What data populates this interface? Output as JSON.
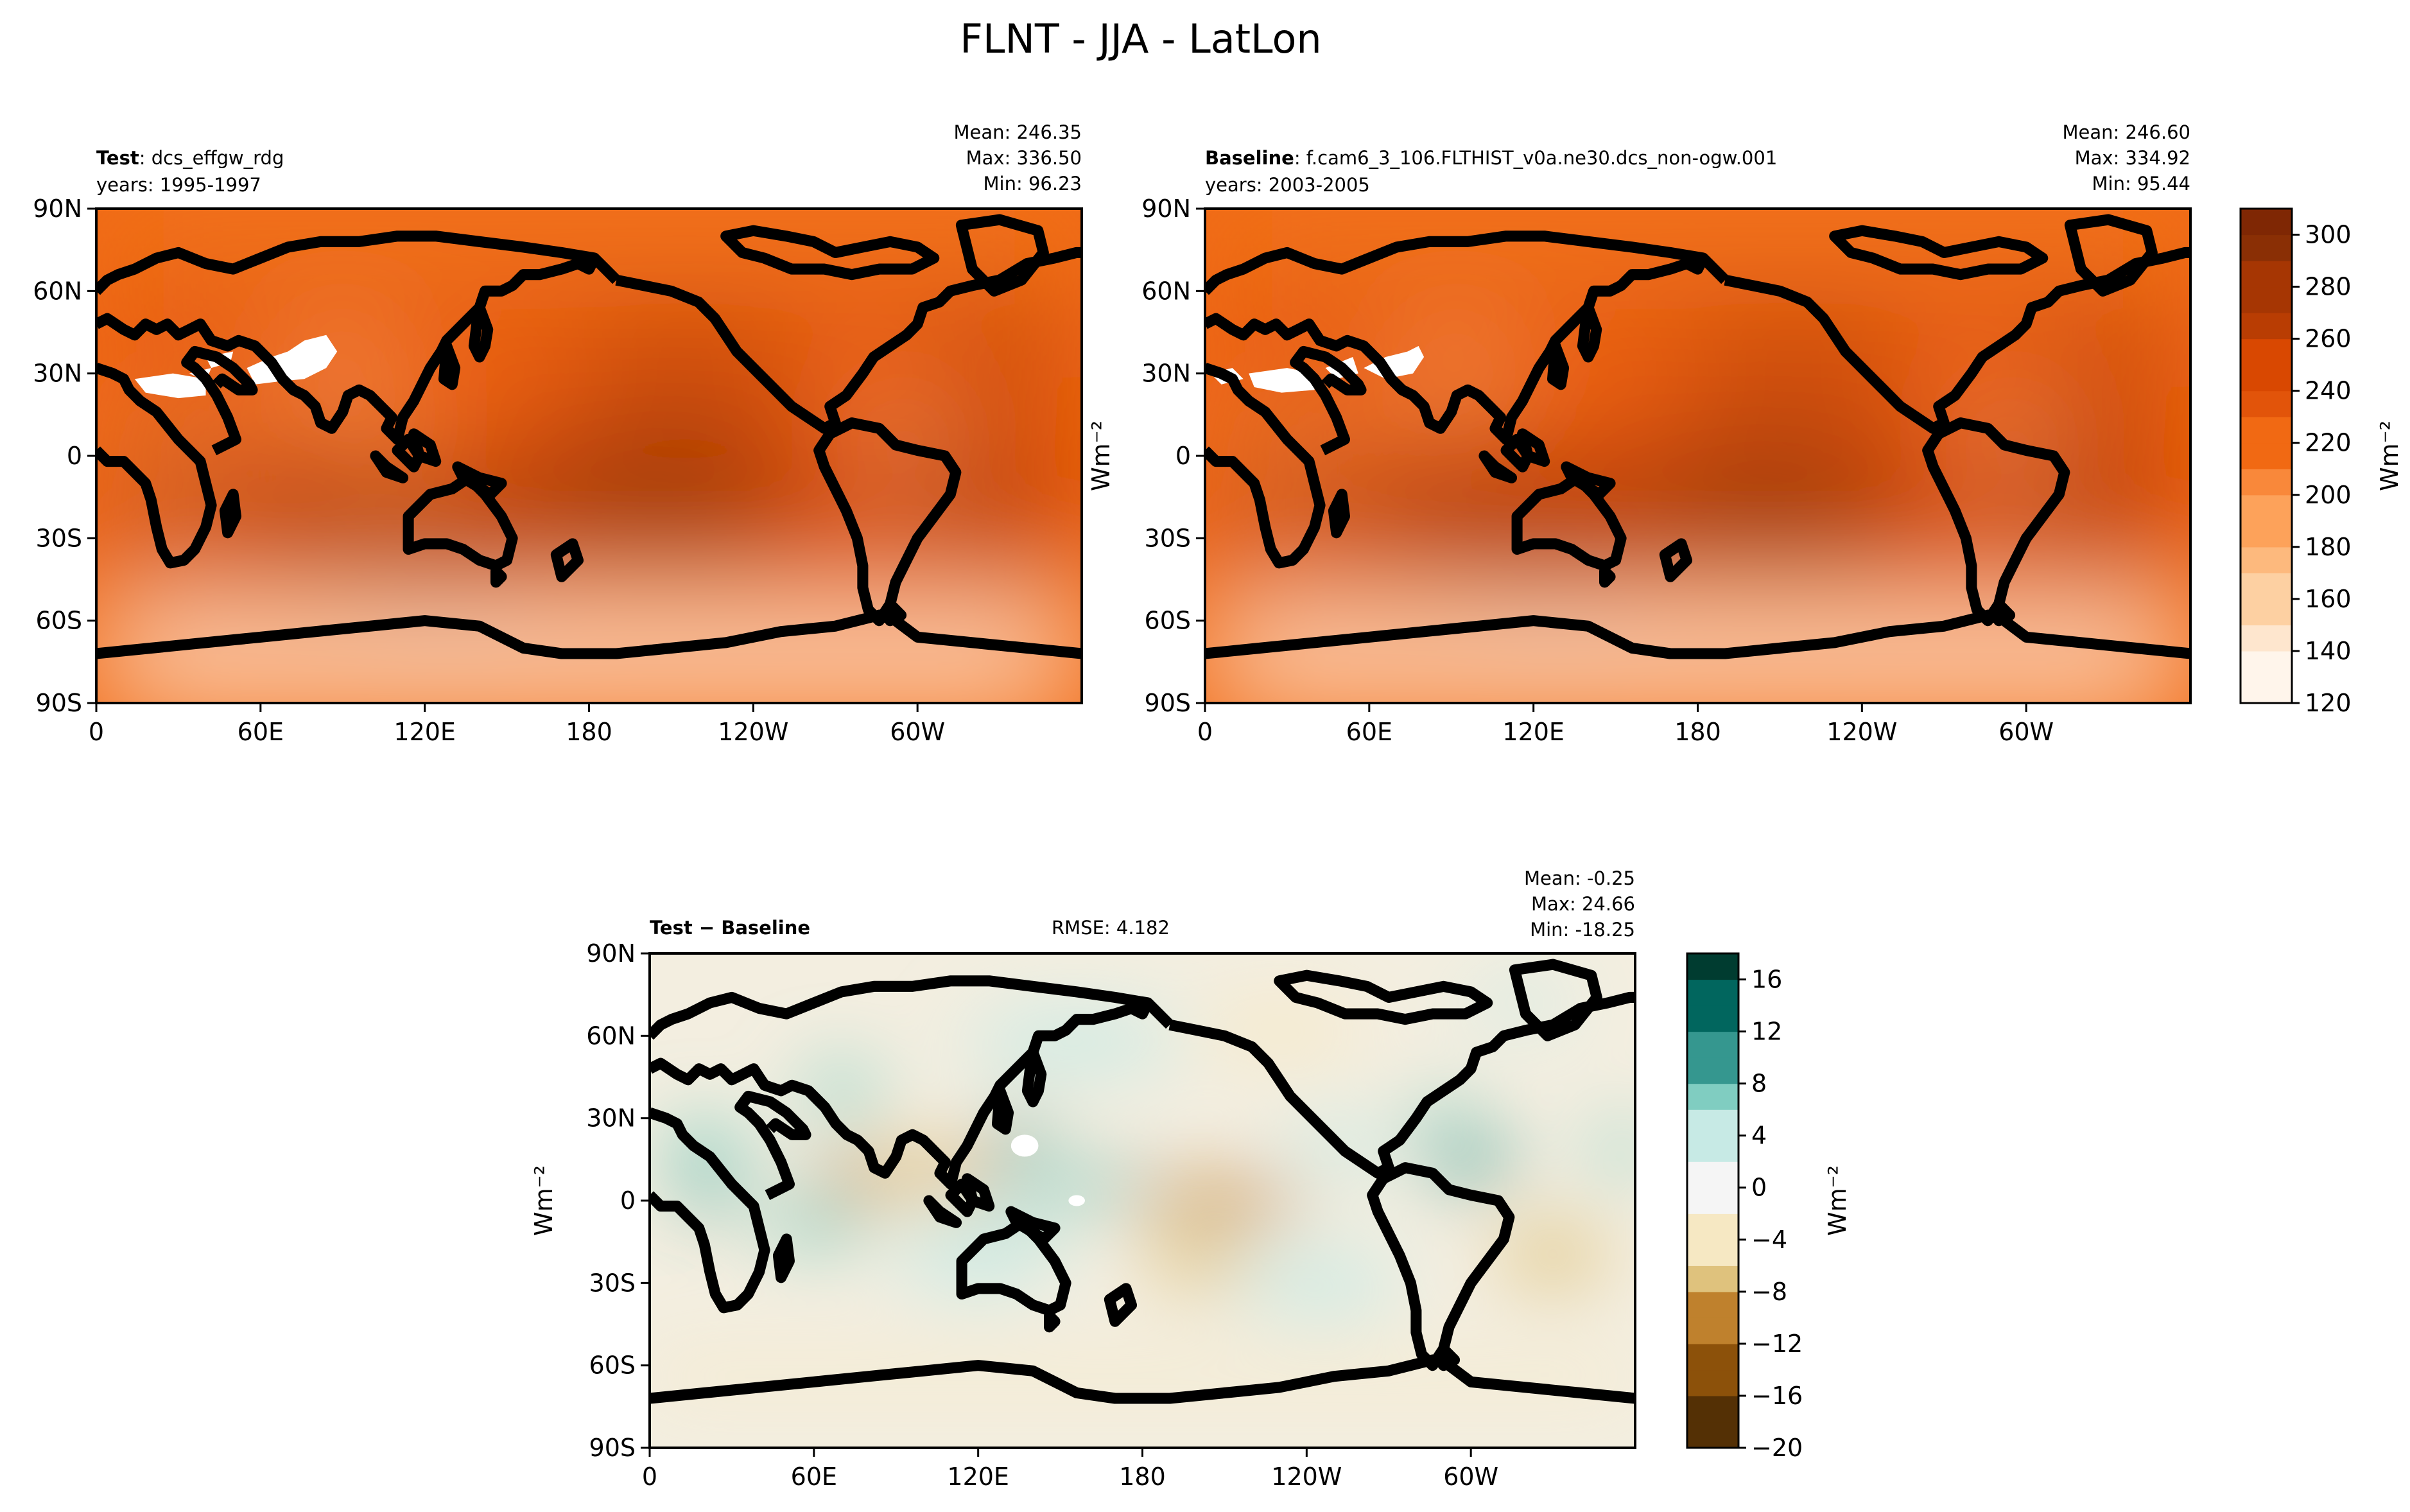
{
  "figure_title": "FLNT - JJA - LatLon",
  "colors": {
    "orange_scale": [
      "#fff5eb",
      "#fee6ce",
      "#fdd0a2",
      "#fdb97d",
      "#fda25a",
      "#f9883a",
      "#f16913",
      "#e2540a",
      "#d94801",
      "#b93d03",
      "#a63603",
      "#8a2f05",
      "#7f2704"
    ],
    "diff_scale": [
      "#543005",
      "#8c510a",
      "#bf812d",
      "#dfc27d",
      "#f6e8c3",
      "#f5f5f5",
      "#c7eae5",
      "#80cdc1",
      "#35978f",
      "#01665e",
      "#003c30"
    ]
  },
  "panels": {
    "test": {
      "label_bold": "Test",
      "label_rest": ": dcs_effgw_rdg",
      "years": "years: 1995-1997",
      "mean": "Mean: 246.35",
      "max": "Max: 336.50",
      "min": "Min: 96.23"
    },
    "baseline": {
      "label_bold": "Baseline",
      "label_rest": ": f.cam6_3_106.FLTHIST_v0a.ne30.dcs_non-ogw.001",
      "years": "years: 2003-2005",
      "mean": "Mean: 246.60",
      "max": "Max: 334.92",
      "min": "Min: 95.44"
    },
    "diff": {
      "label": "Test − Baseline",
      "rmse": "RMSE: 4.182",
      "mean": "Mean: -0.25",
      "max": "Max: 24.66",
      "min": "Min: -18.25"
    }
  },
  "units": "Wm⁻²",
  "chart_data": [
    {
      "type": "heatmap",
      "name": "Test",
      "x_tick_labels": [
        "0",
        "60E",
        "120E",
        "180",
        "120W",
        "60W"
      ],
      "y_tick_labels": [
        "90N",
        "60N",
        "30N",
        "0",
        "30S",
        "60S",
        "90S"
      ],
      "xlim": [
        0,
        360
      ],
      "ylim": [
        -90,
        90
      ],
      "stats": {
        "mean": 246.35,
        "max": 336.5,
        "min": 96.23
      }
    },
    {
      "type": "heatmap",
      "name": "Baseline",
      "x_tick_labels": [
        "0",
        "60E",
        "120E",
        "180",
        "120W",
        "60W"
      ],
      "y_tick_labels": [
        "90N",
        "60N",
        "30N",
        "0",
        "30S",
        "60S",
        "90S"
      ],
      "xlim": [
        0,
        360
      ],
      "ylim": [
        -90,
        90
      ],
      "stats": {
        "mean": 246.6,
        "max": 334.92,
        "min": 95.44
      }
    },
    {
      "type": "heatmap",
      "name": "Test − Baseline",
      "x_tick_labels": [
        "0",
        "60E",
        "120E",
        "180",
        "120W",
        "60W"
      ],
      "y_tick_labels": [
        "90N",
        "60N",
        "30N",
        "0",
        "30S",
        "60S",
        "90S"
      ],
      "xlim": [
        0,
        360
      ],
      "ylim": [
        -90,
        90
      ],
      "stats": {
        "mean": -0.25,
        "max": 24.66,
        "min": -18.25,
        "rmse": 4.182
      }
    }
  ],
  "colorbars": {
    "main": {
      "range": [
        120,
        310
      ],
      "tick_values": [
        120,
        140,
        160,
        180,
        200,
        220,
        240,
        260,
        280,
        300
      ],
      "tick_labels": [
        "120",
        "140",
        "160",
        "180",
        "200",
        "220",
        "240",
        "260",
        "280",
        "300"
      ]
    },
    "diff": {
      "range": [
        -20,
        18
      ],
      "tick_values": [
        -20,
        -16,
        -12,
        -8,
        -4,
        0,
        4,
        8,
        12,
        16
      ],
      "tick_labels": [
        "−20",
        "−16",
        "−12",
        "−8",
        "−4",
        "0",
        "4",
        "8",
        "12",
        "16"
      ]
    }
  }
}
